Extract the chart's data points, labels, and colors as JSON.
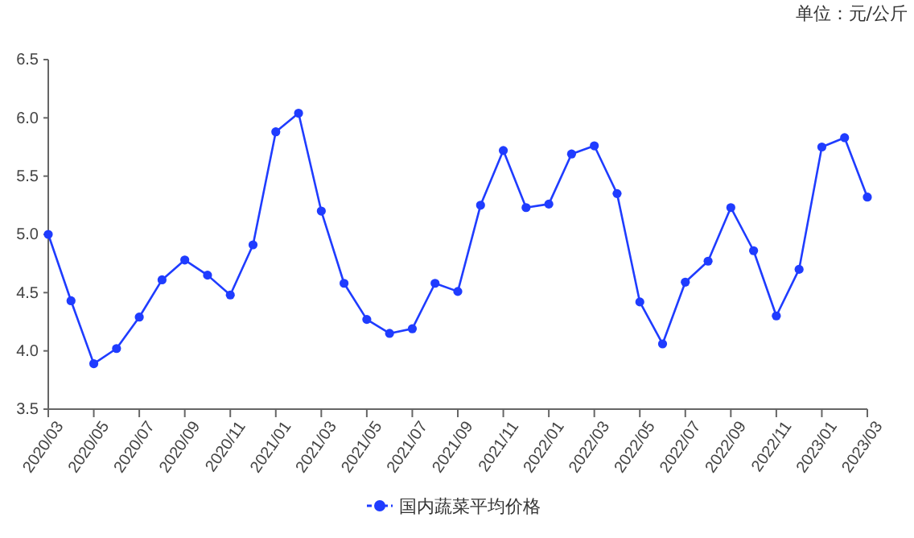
{
  "chart_data": {
    "type": "line",
    "annotations": [
      "单位：元/公斤"
    ],
    "categories": [
      "2020/03",
      null,
      "2020/05",
      null,
      "2020/07",
      null,
      "2020/09",
      null,
      "2020/11",
      null,
      "2021/01",
      null,
      "2021/03",
      null,
      "2021/05",
      null,
      "2021/07",
      null,
      "2021/09",
      null,
      "2021/11",
      null,
      "2022/01",
      null,
      "2022/03",
      null,
      "2022/05",
      null,
      "2022/07",
      null,
      "2022/09",
      null,
      "2022/11",
      null,
      "2023/01",
      null,
      "2023/03"
    ],
    "series": [
      {
        "name": "国内蔬菜平均价格",
        "color": "#1f3cff",
        "values": [
          5.0,
          4.43,
          3.89,
          4.02,
          4.29,
          4.61,
          4.78,
          4.65,
          4.48,
          4.91,
          5.88,
          6.04,
          5.2,
          4.58,
          4.27,
          4.15,
          4.19,
          4.58,
          4.51,
          5.25,
          5.72,
          5.23,
          5.26,
          5.69,
          5.76,
          5.35,
          4.42,
          4.06,
          4.59,
          4.77,
          5.23,
          4.86,
          4.3,
          4.7,
          5.75,
          5.83,
          5.32
        ]
      }
    ],
    "ylim": [
      3.5,
      6.5
    ],
    "yticks": [
      3.5,
      {
        "value": 4,
        "label": "4.0"
      },
      4.5,
      {
        "value": 5,
        "label": "5.0"
      },
      5.5,
      {
        "value": 6,
        "label": "6.0"
      },
      6.5
    ],
    "grid": false,
    "legend": "bottom",
    "marker": "circle",
    "line_style": "solid"
  }
}
